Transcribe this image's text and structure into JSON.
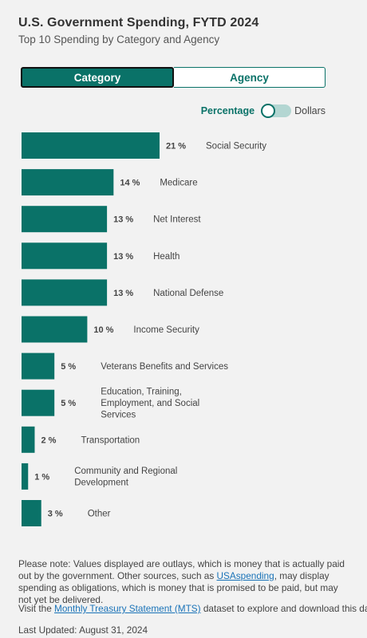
{
  "header": {
    "title": "U.S. Government Spending, FYTD 2024",
    "subtitle": "Top 10 Spending by Category and Agency"
  },
  "tabs": {
    "category": "Category",
    "agency": "Agency"
  },
  "switch": {
    "left_label": "Percentage",
    "right_label": "Dollars",
    "selected": "Percentage"
  },
  "colors": {
    "accent": "#0a7268",
    "link": "#1a73b8"
  },
  "chart_data": {
    "type": "bar",
    "orientation": "horizontal",
    "categories": [
      "Social Security",
      "Medicare",
      "Net Interest",
      "Health",
      "National Defense",
      "Income Security",
      "Veterans Benefits and Services",
      "Education, Training, Employment, and Social Services",
      "Transportation",
      "Community and Regional Development",
      "Other"
    ],
    "values": [
      21,
      14,
      13,
      13,
      13,
      10,
      5,
      5,
      2,
      1,
      3
    ],
    "value_labels": [
      "21 %",
      "14 %",
      "13 %",
      "13 %",
      "13 %",
      "10 %",
      "5 %",
      "5 %",
      "2 %",
      "1 %",
      "3 %"
    ],
    "wrapped_labels": [
      [
        "Social Security"
      ],
      [
        "Medicare"
      ],
      [
        "Net Interest"
      ],
      [
        "Health"
      ],
      [
        "National Defense"
      ],
      [
        "Income Security"
      ],
      [
        "Veterans Benefits and Services"
      ],
      [
        "Education, Training,",
        "Employment, and Social",
        "Services"
      ],
      [
        "Transportation"
      ],
      [
        "Community and Regional",
        "Development"
      ],
      [
        "Other"
      ]
    ],
    "unit": "%"
  },
  "footer": {
    "note_1": "Please note: Values displayed are outlays, which is money that is actually paid out by the government. Other sources, such as ",
    "note_link": "USAspending",
    "note_2": ", may display spending as obligations, which is money that is promised to be paid, but may not yet be delivered.",
    "visit_1": "Visit the ",
    "visit_link": "Monthly Treasury Statement (MTS)",
    "visit_2": " dataset to explore and download this data.",
    "updated": "Last Updated: August 31, 2024"
  }
}
